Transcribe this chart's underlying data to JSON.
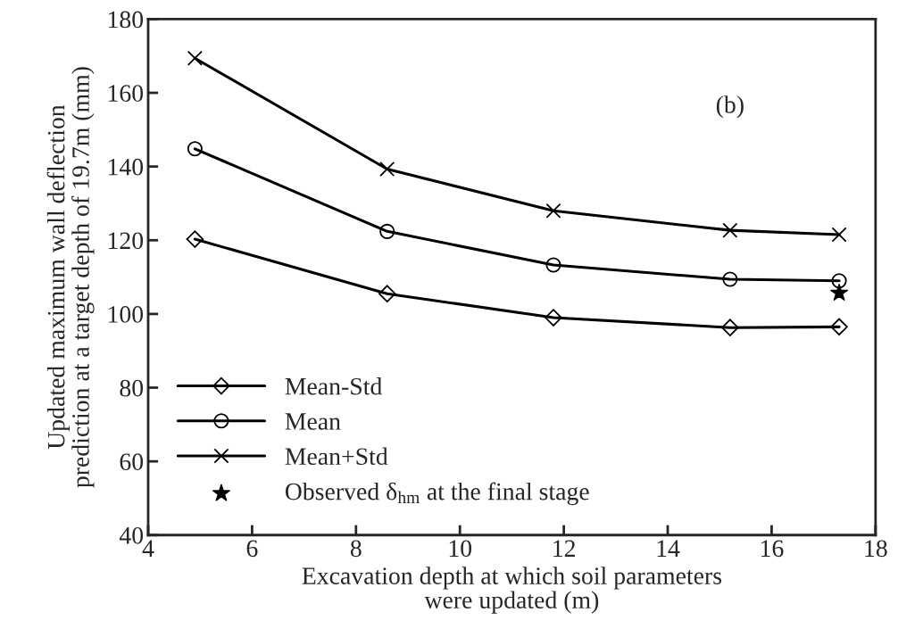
{
  "chart_data": {
    "type": "line",
    "xlabel": "Excavation depth at which soil parameters\nwere updated (m)",
    "ylabel": "Updated maximum wall deflection\nprediction at a target depth of 19.7m (mm)",
    "x": [
      4.9,
      8.6,
      11.8,
      15.2,
      17.3
    ],
    "series": [
      {
        "name": "Mean-Std",
        "color": "#000000",
        "marker": "diamond",
        "values": [
          120.3,
          105.5,
          99,
          96.3,
          96.5
        ]
      },
      {
        "name": "Mean",
        "color": "#000000",
        "marker": "circle",
        "values": [
          144.8,
          122.4,
          113.3,
          109.4,
          109.0
        ]
      },
      {
        "name": "Mean+Std",
        "color": "#000000",
        "marker": "cross",
        "values": [
          169.4,
          139.3,
          128.0,
          122.7,
          121.5
        ]
      },
      {
        "name": "Observed δ$_{hm}$ at the final stage",
        "type": "scatter",
        "color": "#000000",
        "marker": "star",
        "x": [
          17.3
        ],
        "values": [
          105.7
        ]
      }
    ],
    "annotations": [
      "(b)"
    ],
    "xlim": [
      4,
      18
    ],
    "xticks": [
      4,
      6,
      8,
      10,
      12,
      14,
      16,
      18
    ],
    "ylim": [
      40,
      180
    ],
    "yticks": [
      40,
      60,
      80,
      100,
      120,
      140,
      160,
      180
    ],
    "grid": false,
    "legend": "bottom left"
  }
}
